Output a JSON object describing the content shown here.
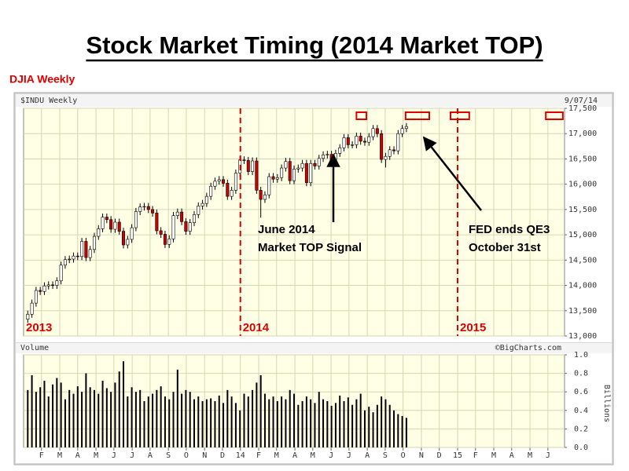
{
  "title": "Stock Market Timing (2014 Market TOP)",
  "subtitle": "DJIA Weekly",
  "chart_data": [
    {
      "type": "candlestick",
      "label": "$INDU Weekly",
      "date": "9/07/14",
      "x": [
        1,
        2,
        3,
        4,
        5,
        6,
        7,
        8,
        9,
        10,
        11,
        12,
        13,
        14,
        15,
        16,
        17,
        18,
        19,
        20,
        21,
        22,
        23,
        24,
        25,
        26,
        27,
        28,
        29,
        30,
        31,
        32,
        33,
        34,
        35,
        36,
        37,
        38,
        39,
        40,
        41,
        42,
        43,
        44,
        45,
        46,
        47,
        48,
        49,
        50,
        51,
        52,
        53,
        54,
        55,
        56,
        57,
        58,
        59,
        60,
        61,
        62,
        63,
        64,
        65,
        66,
        67,
        68,
        69,
        70,
        71,
        72,
        73,
        74,
        75,
        76,
        77,
        78,
        79,
        80,
        81,
        82,
        83,
        84,
        85,
        86,
        87,
        88,
        89,
        90,
        91,
        92
      ],
      "open": [
        13330,
        13430,
        13650,
        13900,
        13880,
        13990,
        14010,
        14000,
        14090,
        14400,
        14510,
        14520,
        14580,
        14570,
        14870,
        14550,
        14710,
        14970,
        15120,
        15350,
        15300,
        15110,
        15250,
        15070,
        14800,
        14910,
        15140,
        15460,
        15550,
        15560,
        15500,
        15430,
        15080,
        15010,
        14810,
        14920,
        15380,
        15450,
        15260,
        15070,
        15240,
        15400,
        15570,
        15620,
        15760,
        15960,
        16060,
        16090,
        16020,
        15760,
        15880,
        16220,
        16480,
        16470,
        16250,
        16460,
        15880,
        15700,
        15790,
        16150,
        16100,
        16130,
        16320,
        16450,
        16070,
        16300,
        16320,
        16410,
        16030,
        16410,
        16360,
        16510,
        16580,
        16590,
        16490,
        16610,
        16720,
        16920,
        16780,
        16780,
        16950,
        16850,
        16830,
        16940,
        17100,
        17000,
        16490,
        16550,
        16680,
        16660,
        17000,
        17100
      ],
      "high": [
        13500,
        13720,
        13970,
        13970,
        14060,
        14080,
        14080,
        14160,
        14470,
        14580,
        14590,
        14650,
        14650,
        14940,
        14940,
        14780,
        15040,
        15190,
        15420,
        15420,
        15370,
        15320,
        15320,
        15140,
        14980,
        15210,
        15530,
        15620,
        15630,
        15630,
        15570,
        15500,
        15150,
        15080,
        14990,
        15450,
        15520,
        15520,
        15330,
        15310,
        15470,
        15640,
        15690,
        15830,
        16030,
        16130,
        16160,
        16160,
        16090,
        15950,
        16290,
        16550,
        16550,
        16540,
        16530,
        16530,
        15950,
        15860,
        16220,
        16220,
        16200,
        16390,
        16520,
        16520,
        16370,
        16390,
        16480,
        16480,
        16480,
        16480,
        16580,
        16650,
        16660,
        16660,
        16680,
        16790,
        16990,
        16990,
        16850,
        17020,
        17020,
        16920,
        17010,
        17170,
        17170,
        17070,
        16620,
        16750,
        16750,
        17070,
        17170,
        17210
      ],
      "low": [
        13260,
        13360,
        13580,
        13810,
        13810,
        13920,
        13930,
        13930,
        14020,
        14330,
        14440,
        14450,
        14500,
        14500,
        14480,
        14480,
        14640,
        14900,
        15050,
        15230,
        15040,
        15040,
        15000,
        14730,
        14730,
        14840,
        15070,
        15390,
        15480,
        15430,
        15360,
        15010,
        14940,
        14740,
        14740,
        14850,
        15310,
        15190,
        15000,
        15000,
        15170,
        15330,
        15500,
        15550,
        15690,
        15890,
        15990,
        15950,
        15690,
        15690,
        15810,
        16150,
        16400,
        16180,
        16180,
        15810,
        15340,
        15630,
        15720,
        16030,
        16030,
        16060,
        16250,
        16000,
        16000,
        16230,
        16250,
        15960,
        15960,
        16290,
        16290,
        16440,
        16510,
        16420,
        16420,
        16540,
        16650,
        16710,
        16710,
        16710,
        16780,
        16760,
        16760,
        16870,
        16930,
        16420,
        16330,
        16480,
        16590,
        16590,
        16930,
        17030
      ],
      "close": [
        13430,
        13650,
        13900,
        13880,
        13990,
        14010,
        14000,
        14090,
        14400,
        14510,
        14520,
        14580,
        14570,
        14870,
        14550,
        14710,
        14970,
        15120,
        15350,
        15300,
        15110,
        15250,
        15070,
        14800,
        14910,
        15140,
        15460,
        15550,
        15560,
        15500,
        15430,
        15080,
        15010,
        14810,
        14920,
        15380,
        15450,
        15260,
        15070,
        15240,
        15400,
        15570,
        15620,
        15760,
        15960,
        16060,
        16090,
        16020,
        15760,
        15880,
        16220,
        16480,
        16470,
        16250,
        16460,
        15880,
        15700,
        15790,
        16150,
        16100,
        16130,
        16320,
        16450,
        16070,
        16300,
        16320,
        16410,
        16030,
        16410,
        16360,
        16510,
        16580,
        16590,
        16490,
        16610,
        16720,
        16920,
        16780,
        16780,
        16950,
        16850,
        16830,
        16940,
        17100,
        17000,
        16490,
        16550,
        16680,
        16660,
        17000,
        17100,
        17140
      ],
      "up_color": "#ffffff",
      "down_color": "#cc0000",
      "xlim": [
        0,
        130
      ],
      "ylim": [
        13000,
        17500
      ],
      "yticks": [
        {
          "value": 13000,
          "label": "13,000"
        },
        {
          "value": 13500,
          "label": "13,500"
        },
        {
          "value": 14000,
          "label": "14,000"
        },
        {
          "value": 14500,
          "label": "14,500"
        },
        {
          "value": 15000,
          "label": "15,000"
        },
        {
          "value": 15500,
          "label": "15,500"
        },
        {
          "value": 16000,
          "label": "16,000"
        },
        {
          "value": 16500,
          "label": "16,500"
        },
        {
          "value": 17000,
          "label": "17,000"
        },
        {
          "value": 17500,
          "label": "17,500"
        }
      ],
      "xticks": [
        {
          "value": 4.3,
          "label": "F"
        },
        {
          "value": 8.7,
          "label": "M"
        },
        {
          "value": 13.0,
          "label": "A"
        },
        {
          "value": 17.4,
          "label": "M"
        },
        {
          "value": 21.7,
          "label": "J"
        },
        {
          "value": 26.1,
          "label": "J"
        },
        {
          "value": 30.4,
          "label": "A"
        },
        {
          "value": 34.8,
          "label": "S"
        },
        {
          "value": 39.1,
          "label": "O"
        },
        {
          "value": 43.5,
          "label": "N"
        },
        {
          "value": 47.8,
          "label": "D"
        },
        {
          "value": 52.1,
          "label": "14"
        },
        {
          "value": 56.5,
          "label": "F"
        },
        {
          "value": 60.8,
          "label": "M"
        },
        {
          "value": 65.2,
          "label": "A"
        },
        {
          "value": 69.5,
          "label": "M"
        },
        {
          "value": 73.9,
          "label": "J"
        },
        {
          "value": 78.2,
          "label": "J"
        },
        {
          "value": 82.6,
          "label": "A"
        },
        {
          "value": 86.9,
          "label": "S"
        },
        {
          "value": 91.2,
          "label": "O"
        },
        {
          "value": 95.6,
          "label": "N"
        },
        {
          "value": 99.9,
          "label": "D"
        },
        {
          "value": 104.3,
          "label": "15"
        },
        {
          "value": 108.6,
          "label": "F"
        },
        {
          "value": 113.0,
          "label": "M"
        },
        {
          "value": 117.3,
          "label": "A"
        },
        {
          "value": 121.7,
          "label": "M"
        },
        {
          "value": 126.0,
          "label": "J"
        }
      ],
      "grid": true,
      "year_markers": [
        {
          "x": 0,
          "label": "2013",
          "line": false
        },
        {
          "x": 52.1,
          "label": "2014",
          "line": true
        },
        {
          "x": 104.3,
          "label": "2015",
          "line": true
        }
      ],
      "marker_color": "#dd0000",
      "timing_windows": [
        [
          80,
          82.4
        ],
        [
          91.8,
          97.5
        ],
        [
          102.6,
          107.1
        ],
        [
          125.5,
          129.6
        ]
      ],
      "annotations": [
        [
          "June 2014",
          "Market TOP Signal"
        ],
        [
          "FED ends QE3",
          "October 31st"
        ]
      ]
    },
    {
      "type": "bar",
      "label": "Volume",
      "credit": "©BigCharts.com",
      "ylabel": "Billions",
      "color": "#000000",
      "values": [
        0.62,
        0.78,
        0.6,
        0.65,
        0.72,
        0.55,
        0.68,
        0.75,
        0.7,
        0.52,
        0.62,
        0.58,
        0.66,
        0.6,
        0.8,
        0.65,
        0.62,
        0.58,
        0.72,
        0.64,
        0.6,
        0.7,
        0.82,
        0.93,
        0.55,
        0.65,
        0.6,
        0.62,
        0.5,
        0.55,
        0.58,
        0.62,
        0.66,
        0.55,
        0.52,
        0.6,
        0.84,
        0.58,
        0.62,
        0.6,
        0.52,
        0.55,
        0.5,
        0.52,
        0.53,
        0.5,
        0.56,
        0.48,
        0.62,
        0.55,
        0.48,
        0.4,
        0.58,
        0.55,
        0.62,
        0.7,
        0.78,
        0.58,
        0.52,
        0.55,
        0.5,
        0.55,
        0.52,
        0.62,
        0.58,
        0.46,
        0.5,
        0.55,
        0.52,
        0.48,
        0.6,
        0.52,
        0.5,
        0.45,
        0.48,
        0.56,
        0.5,
        0.54,
        0.46,
        0.52,
        0.58,
        0.4,
        0.44,
        0.38,
        0.46,
        0.55,
        0.52,
        0.46,
        0.4,
        0.36,
        0.34,
        0.32
      ],
      "ylim": [
        0,
        1.0
      ],
      "yticks": [
        {
          "value": 0,
          "label": "0.0"
        },
        {
          "value": 0.2,
          "label": "0.2"
        },
        {
          "value": 0.4,
          "label": "0.4"
        },
        {
          "value": 0.6,
          "label": "0.6"
        },
        {
          "value": 0.8,
          "label": "0.8"
        },
        {
          "value": 1.0,
          "label": "1.0"
        }
      ],
      "grid": true
    }
  ]
}
